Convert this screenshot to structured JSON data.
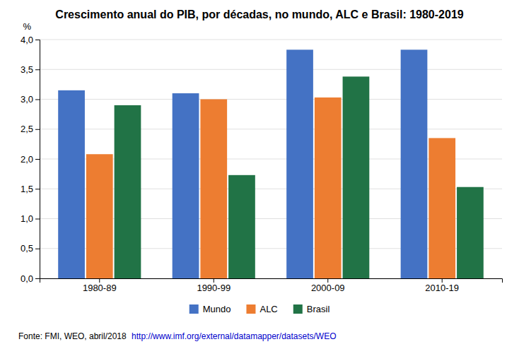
{
  "chart_data": {
    "type": "bar",
    "title": "Crescimento anual do PIB, por décadas, no mundo, ALC e Brasil: 1980-2019",
    "categories": [
      "1980-89",
      "1990-99",
      "2000-09",
      "2010-19"
    ],
    "series": [
      {
        "name": "Mundo",
        "color": "#4472c4",
        "values": [
          3.15,
          3.1,
          3.83,
          3.83
        ]
      },
      {
        "name": "ALC",
        "color": "#ed7d31",
        "values": [
          2.08,
          3.0,
          3.03,
          2.35
        ]
      },
      {
        "name": "Brasil",
        "color": "#217346",
        "values": [
          2.9,
          1.73,
          3.38,
          1.53
        ]
      }
    ],
    "ylabel": "%",
    "ylim": [
      0,
      4.0
    ],
    "yticks": [
      {
        "value": 0.0,
        "label": "0,0"
      },
      {
        "value": 0.5,
        "label": "0,5"
      },
      {
        "value": 1.0,
        "label": "1,0"
      },
      {
        "value": 1.5,
        "label": "1,5"
      },
      {
        "value": 2.0,
        "label": "2,0"
      },
      {
        "value": 2.5,
        "label": "2,5"
      },
      {
        "value": 3.0,
        "label": "3,0"
      },
      {
        "value": 3.5,
        "label": "3,5"
      },
      {
        "value": 4.0,
        "label": "4,0"
      }
    ],
    "grid": true,
    "legend": "bottom",
    "annotations": [
      "Fonte: FMI, WEO, abril/2018 ",
      "http://www.imf.org/external/datamapper/datasets/WEO"
    ]
  }
}
